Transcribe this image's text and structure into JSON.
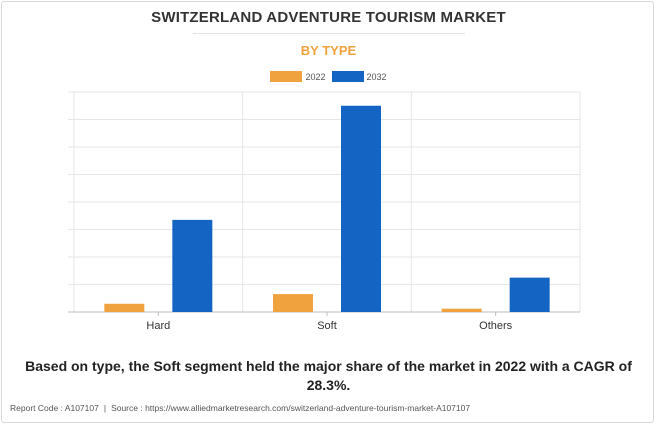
{
  "chart_data": {
    "type": "bar",
    "title": "SWITZERLAND ADVENTURE TOURISM MARKET",
    "subtitle": "BY TYPE",
    "categories": [
      "Hard",
      "Soft",
      "Others"
    ],
    "series": [
      {
        "name": "2022",
        "values": [
          3,
          6.5,
          1.2
        ],
        "color": "#f0a23e"
      },
      {
        "name": "2032",
        "values": [
          33.5,
          75,
          12.5
        ],
        "color": "#1464c4"
      }
    ],
    "ylim": [
      0,
      80
    ],
    "grid": true,
    "legend": "top-center",
    "xlabel": "",
    "ylabel": ""
  },
  "colors": {
    "subtitle": "#f0a23e",
    "grid": "#e6e6e6",
    "axis": "#bdbdbd"
  },
  "caption": "Based on type, the Soft segment held the major share of the market in 2022 with a CAGR of 28.3%.",
  "footer": {
    "report_code": "Report Code : A107107",
    "separator": "|",
    "source": "Source : https://www.alliedmarketresearch.com/switzerland-adventure-tourism-market-A107107"
  }
}
